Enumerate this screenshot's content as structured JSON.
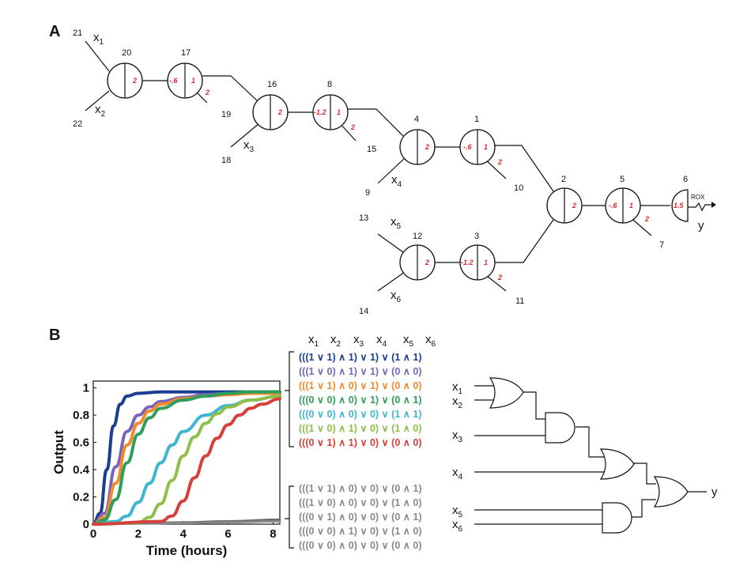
{
  "panel_a": {
    "letter": "A",
    "output_label": "y",
    "reporter_label": "ROX",
    "nodes": [
      {
        "id": "20",
        "right": "2"
      },
      {
        "id": "17",
        "left": "-.6",
        "right": "1",
        "leg": "2"
      },
      {
        "id": "16",
        "right": "2"
      },
      {
        "id": "8",
        "left": "-1.2",
        "right": "1",
        "leg": "2"
      },
      {
        "id": "4",
        "right": "2"
      },
      {
        "id": "1",
        "left": "-.6",
        "right": "1",
        "leg": "2"
      },
      {
        "id": "12",
        "right": "2"
      },
      {
        "id": "3",
        "left": "-1.2",
        "right": "1",
        "leg": "2"
      },
      {
        "id": "2",
        "right": "2"
      },
      {
        "id": "5",
        "left": "-.6",
        "right": "1",
        "leg": "2"
      },
      {
        "id": "6",
        "left": "-1.5"
      }
    ],
    "input_labels": [
      {
        "num": "21",
        "var": "x",
        "sub": "1"
      },
      {
        "num": "22",
        "var": "x",
        "sub": "2"
      },
      {
        "num": "18",
        "var": "x",
        "sub": "3"
      },
      {
        "num": "9",
        "var": "x",
        "sub": "4"
      },
      {
        "num": "13",
        "var": "x",
        "sub": "5"
      },
      {
        "num": "14",
        "var": "x",
        "sub": "6"
      }
    ],
    "free_numbers": [
      "19",
      "15",
      "10",
      "11",
      "7"
    ]
  },
  "panel_b": {
    "letter": "B",
    "header_vars": [
      {
        "var": "x",
        "sub": "1"
      },
      {
        "var": "x",
        "sub": "2"
      },
      {
        "var": "x",
        "sub": "3"
      },
      {
        "var": "x",
        "sub": "4"
      },
      {
        "var": "x",
        "sub": "5"
      },
      {
        "var": "x",
        "sub": "6"
      }
    ],
    "on_expressions": [
      {
        "text": "(((1 ∨ 1) ∧ 1) ∨ 1) ∨ (1 ∧ 1)",
        "color": "#1a3f8f"
      },
      {
        "text": "(((1 ∨ 0) ∧ 1) ∨ 1) ∨ (0 ∧ 0)",
        "color": "#7b63b8"
      },
      {
        "text": "(((1 ∨ 1) ∧ 0) ∨ 1) ∨ (0 ∧ 0)",
        "color": "#f08a2c"
      },
      {
        "text": "(((0 ∨ 0) ∧ 0) ∨ 1) ∨ (0 ∧ 1)",
        "color": "#2f9e5a"
      },
      {
        "text": "(((0 ∨ 0) ∧ 0) ∨ 0) ∨ (1 ∧ 1)",
        "color": "#3fb6cf"
      },
      {
        "text": "(((1 ∨ 0) ∧ 1) ∨ 0) ∨ (1 ∧ 0)",
        "color": "#8cc04a"
      },
      {
        "text": "(((0 ∨ 1) ∧ 1) ∨ 0) ∨ (0 ∧ 0)",
        "color": "#d6403a"
      }
    ],
    "off_color": "#8a8a8a",
    "off_expressions": [
      "(((1 ∨ 1) ∧ 0) ∨ 0) ∨ (0 ∧ 1)",
      "(((1 ∨ 0) ∧ 0) ∨ 0) ∨ (1 ∧ 0)",
      "(((0 ∨ 1) ∧ 0) ∨ 0) ∨ (0 ∧ 1)",
      "(((0 ∨ 0) ∧ 1) ∨ 0) ∨ (1 ∧ 0)",
      "(((0 ∨ 0) ∧ 0) ∨ 0) ∨ (0 ∧ 0)"
    ],
    "circuit_inputs": [
      {
        "var": "x",
        "sub": "1"
      },
      {
        "var": "x",
        "sub": "2"
      },
      {
        "var": "x",
        "sub": "3"
      },
      {
        "var": "x",
        "sub": "4"
      },
      {
        "var": "x",
        "sub": "5"
      },
      {
        "var": "x",
        "sub": "6"
      }
    ],
    "circuit_output": "y"
  },
  "chart_data": {
    "type": "line",
    "xlabel": "Time (hours)",
    "ylabel": "Output",
    "xlim": [
      0,
      8.3
    ],
    "ylim": [
      0,
      1.05
    ],
    "xticks": [
      "0",
      "2",
      "4",
      "6",
      "8"
    ],
    "yticks": [
      "0",
      "0.2",
      "0.4",
      "0.6",
      "0.8",
      "1"
    ],
    "series": [
      {
        "color": "#1a3f8f",
        "x": [
          0,
          0.3,
          0.6,
          0.9,
          1.2,
          1.5,
          2,
          3,
          4,
          5,
          6,
          7,
          8.3
        ],
        "y": [
          0,
          0.08,
          0.4,
          0.72,
          0.88,
          0.94,
          0.96,
          0.97,
          0.97,
          0.97,
          0.97,
          0.97,
          0.97
        ]
      },
      {
        "color": "#7b63b8",
        "x": [
          0,
          0.5,
          1,
          1.5,
          2,
          2.5,
          3,
          4,
          5,
          6,
          7,
          8.3
        ],
        "y": [
          0,
          0.08,
          0.42,
          0.68,
          0.8,
          0.86,
          0.9,
          0.93,
          0.95,
          0.96,
          0.96,
          0.96
        ]
      },
      {
        "color": "#f08a2c",
        "x": [
          0,
          0.5,
          1,
          1.5,
          2,
          2.5,
          3,
          4,
          5,
          6,
          7,
          8.3
        ],
        "y": [
          0,
          0.05,
          0.3,
          0.58,
          0.74,
          0.83,
          0.88,
          0.92,
          0.94,
          0.95,
          0.96,
          0.96
        ]
      },
      {
        "color": "#2f9e5a",
        "x": [
          0,
          0.5,
          1,
          1.5,
          2,
          2.5,
          3,
          4,
          5,
          6,
          7,
          8.3
        ],
        "y": [
          0,
          0.03,
          0.18,
          0.45,
          0.66,
          0.78,
          0.85,
          0.91,
          0.94,
          0.96,
          0.97,
          0.97
        ]
      },
      {
        "color": "#3fb6cf",
        "x": [
          0,
          1,
          1.5,
          2,
          2.5,
          3,
          3.5,
          4,
          5,
          6,
          7,
          8.3
        ],
        "y": [
          0,
          0.02,
          0.06,
          0.16,
          0.3,
          0.45,
          0.58,
          0.68,
          0.8,
          0.87,
          0.91,
          0.94
        ]
      },
      {
        "color": "#8cc04a",
        "x": [
          0,
          2,
          2.5,
          3,
          3.5,
          4,
          4.5,
          5,
          5.5,
          6,
          7,
          8.3
        ],
        "y": [
          0,
          0.01,
          0.05,
          0.15,
          0.32,
          0.5,
          0.64,
          0.74,
          0.81,
          0.86,
          0.91,
          0.94
        ]
      },
      {
        "color": "#d6403a",
        "x": [
          0,
          3,
          3.5,
          4,
          4.5,
          5,
          5.5,
          6,
          6.5,
          7,
          7.5,
          8.3
        ],
        "y": [
          0,
          0.02,
          0.06,
          0.17,
          0.34,
          0.5,
          0.63,
          0.73,
          0.8,
          0.85,
          0.88,
          0.92
        ]
      },
      {
        "color": "#7a7a7a",
        "x": [
          0,
          2,
          4,
          6,
          8.3
        ],
        "y": [
          0,
          0.005,
          0.012,
          0.02,
          0.03
        ]
      },
      {
        "color": "#9a9a9a",
        "x": [
          0,
          2,
          4,
          6,
          8.3
        ],
        "y": [
          0,
          0.004,
          0.01,
          0.016,
          0.024
        ]
      },
      {
        "color": "#6a6a6a",
        "x": [
          0,
          2,
          4,
          6,
          8.3
        ],
        "y": [
          0,
          0.006,
          0.014,
          0.022,
          0.034
        ]
      },
      {
        "color": "#b0b0b0",
        "x": [
          0,
          2,
          4,
          6,
          8.3
        ],
        "y": [
          0,
          0.003,
          0.008,
          0.013,
          0.02
        ]
      },
      {
        "color": "#858585",
        "x": [
          0,
          2,
          4,
          6,
          8.3
        ],
        "y": [
          0,
          0.004,
          0.009,
          0.015,
          0.022
        ]
      }
    ]
  }
}
